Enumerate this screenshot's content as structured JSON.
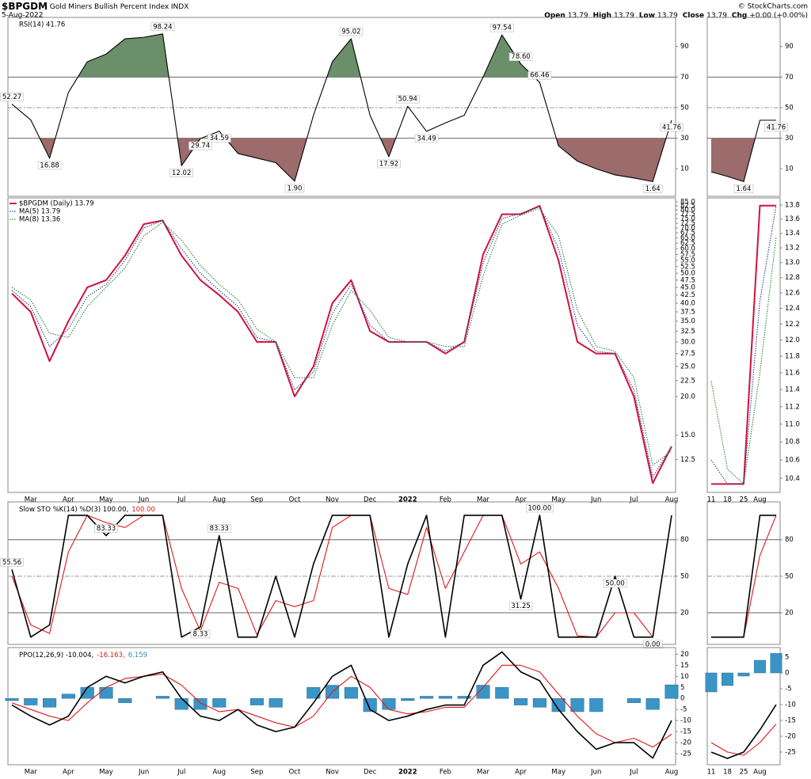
{
  "chart_data": {
    "type": "stock",
    "symbol": "$BPGDM",
    "name": "Gold Miners Bullish Percent Index",
    "exchange": "INDX",
    "date": "5-Aug-2022",
    "credit": "© StockCharts.com",
    "quote": [
      {
        "label": "Open",
        "value": "13.79"
      },
      {
        "label": "High",
        "value": "13.79"
      },
      {
        "label": "Low",
        "value": "13.79"
      },
      {
        "label": "Close",
        "value": "13.79"
      },
      {
        "label": "Chg",
        "value": "+0.00 (+0.00%)"
      }
    ],
    "categories": [
      null,
      "Mar",
      null,
      "Apr",
      null,
      "May",
      null,
      "Jun",
      null,
      "Jul",
      null,
      "Aug",
      null,
      "Sep",
      null,
      "Oct",
      null,
      "Nov",
      null,
      "Dec",
      null,
      "2022",
      null,
      "Feb",
      null,
      "Mar",
      null,
      "Apr",
      null,
      "May",
      null,
      "Jun",
      null,
      "Jul",
      null,
      "Aug"
    ],
    "panels": [
      {
        "title": "RSI(14) 41.76",
        "ylim": [
          -8,
          109
        ],
        "yticks": [
          10,
          30,
          50,
          70,
          90
        ],
        "levels": [
          {
            "value": 30
          },
          {
            "value": 50,
            "dash": true
          },
          {
            "value": 70
          }
        ],
        "fill_below": "#9c6b6b",
        "fill_above": "#6a8f6a",
        "series": [
          {
            "color": "#000000",
            "values": [
              52.27,
              42,
              16.88,
              60,
              80,
              85,
              95,
              96,
              98.24,
              12.02,
              29.74,
              34.59,
              20,
              17,
              14,
              1.9,
              45,
              80,
              95.02,
              45,
              17.92,
              50.94,
              34.49,
              40,
              45,
              70,
              97.54,
              78.6,
              66.46,
              25,
              15,
              10,
              6,
              4,
              1.64,
              41.76
            ],
            "value_labels": [
              "52.27",
              null,
              "16.88",
              null,
              null,
              null,
              null,
              null,
              "98.24",
              "12.02",
              "29.74",
              "34.59",
              null,
              null,
              null,
              "1.90",
              null,
              null,
              "95.02",
              null,
              "17.92",
              "50.94",
              "34.49",
              null,
              null,
              null,
              "97.54",
              "78.60",
              "66.46",
              null,
              null,
              null,
              null,
              null,
              "1.64",
              "41.76"
            ]
          }
        ]
      },
      {
        "log_scale": true,
        "legend": true,
        "xlabels": true,
        "ylim": [
          9.8,
          87.5
        ],
        "yticks": [
          {
            "value": 85,
            "label": "85.0"
          },
          82.5,
          {
            "value": 80,
            "label": "80.0"
          },
          77.5,
          {
            "value": 75,
            "label": "75.0"
          },
          72.5,
          {
            "value": 70,
            "label": "70.0"
          },
          67.5,
          {
            "value": 65,
            "label": "65.0"
          },
          62.5,
          {
            "value": 60,
            "label": "60.0"
          },
          57.5,
          {
            "value": 55,
            "label": "55.0"
          },
          52.5,
          {
            "value": 50,
            "label": "50.0"
          },
          47.5,
          {
            "value": 45,
            "label": "45.0"
          },
          42.5,
          {
            "value": 40,
            "label": "40.0"
          },
          37.5,
          {
            "value": 35,
            "label": "35.0"
          },
          32.5,
          {
            "value": 30,
            "label": "30.0"
          },
          27.5,
          {
            "value": 25,
            "label": "25.0"
          },
          22.5,
          {
            "value": 20,
            "label": "20.0"
          },
          {
            "value": 15,
            "label": "15.0"
          },
          12.5
        ],
        "series": [
          {
            "name": "$BPGDM (Daily) 13.79",
            "color": "#d3103c",
            "width": 2,
            "values": [
              43,
              37.5,
              26,
              35,
              45,
              47.5,
              57,
              72,
              74,
              57,
              47.5,
              42.5,
              37.5,
              30,
              30,
              20,
              25,
              40,
              47.5,
              32.5,
              30,
              30,
              30,
              27.5,
              30,
              57.5,
              77.5,
              77.5,
              82.5,
              55,
              30,
              27.5,
              27.5,
              20,
              10.5,
              13.79
            ]
          },
          {
            "name": "MA(5) 13.79",
            "color": "#2b3fa8",
            "dash": true,
            "values": [
              44,
              39,
              29,
              33,
              42,
              46,
              55,
              70,
              74,
              60,
              50,
              44,
              39,
              31,
              30,
              21,
              24,
              37,
              46,
              34,
              30,
              30,
              30,
              28,
              30,
              54,
              75,
              78,
              82,
              60,
              34,
              28,
              27.5,
              21,
              11,
              13.79
            ]
          },
          {
            "name": "MA(8) 13.36",
            "color": "#2a8a2a",
            "dash": true,
            "values": [
              45,
              41,
              32,
              31,
              39,
              45,
              52,
              66,
              73,
              64,
              53,
              46,
              41,
              33,
              30,
              23,
              23,
              34,
              44,
              38,
              31,
              30,
              30,
              29,
              29,
              49,
              72,
              77,
              81,
              66,
              38,
              29,
              28,
              23,
              12,
              13.36
            ]
          }
        ]
      },
      {
        "title_parts": [
          {
            "text": "Slow STO %K(14) %D(3) 100.00,",
            "color": "#000000"
          },
          {
            "text": "100.00",
            "color": "#e01818"
          }
        ],
        "ylim": [
          -6,
          111
        ],
        "yticks": [
          20,
          50,
          80
        ],
        "levels": [
          {
            "value": 20
          },
          {
            "value": 50,
            "dash": true
          },
          {
            "value": 80
          }
        ],
        "series": [
          {
            "color": "#e01818",
            "values": [
              50,
              10,
              3,
              70,
              100,
              94,
              90,
              100,
              100,
              40,
              5,
              45,
              40,
              2,
              30,
              25,
              30,
              90,
              100,
              100,
              40,
              35,
              90,
              40,
              70,
              100,
              100,
              60,
              70,
              40,
              1,
              0,
              20,
              20,
              0,
              100
            ]
          },
          {
            "color": "#000000",
            "width": 1.6,
            "values": [
              55.56,
              0,
              10,
              100,
              100,
              83.33,
              100,
              100,
              100,
              0,
              8.33,
              83.33,
              0,
              0,
              50,
              0,
              60,
              100,
              100,
              100,
              0,
              60,
              100,
              0,
              100,
              100,
              100,
              31.25,
              100,
              0,
              0,
              0,
              50,
              0,
              0,
              100
            ],
            "value_labels": [
              "55.56",
              null,
              null,
              null,
              null,
              "83.33",
              null,
              null,
              null,
              null,
              "8.33",
              "83.33",
              null,
              null,
              null,
              null,
              null,
              null,
              null,
              null,
              null,
              null,
              null,
              null,
              null,
              null,
              null,
              "31.25",
              "100.00",
              null,
              null,
              null,
              "50.00",
              null,
              "0.00",
              null
            ]
          }
        ]
      },
      {
        "title_parts": [
          {
            "text": "PPO(12,26,9) -10.004,",
            "color": "#000000"
          },
          {
            "text": "-16.163,",
            "color": "#e01818"
          },
          {
            "text": "6.159",
            "color": "#2f8fc0"
          }
        ],
        "xlabels": true,
        "ylim": [
          -30,
          23
        ],
        "yticks": [
          20,
          15,
          10,
          5,
          0,
          -5,
          -10,
          -15,
          -20,
          -25
        ],
        "series": [
          {
            "style": "bar",
            "color": "#3a94c6",
            "values": [
              -1,
              -3,
              -4,
              2,
              5,
              5,
              -2,
              0,
              1,
              -5,
              -5,
              -4,
              0,
              -3,
              -4,
              0,
              5,
              6,
              5,
              -6,
              -5,
              -1,
              1,
              1,
              1,
              6,
              5,
              -3,
              -4,
              -6,
              -6,
              -6,
              0,
              -2,
              -5,
              6.159
            ]
          },
          {
            "color": "#e01818",
            "values": [
              -2,
              -5,
              -8,
              -10,
              -2,
              5,
              9,
              10,
              11,
              6,
              -2,
              -6,
              -5,
              -8,
              -11,
              -13,
              -8,
              3,
              10,
              5,
              -5,
              -7,
              -6,
              -4,
              -4,
              5,
              15,
              15,
              12,
              2,
              -8,
              -16,
              -20,
              -18,
              -22,
              -16.163
            ]
          },
          {
            "color": "#000000",
            "width": 1.6,
            "values": [
              -3,
              -8,
              -12,
              -8,
              5,
              10,
              7,
              10,
              12,
              0,
              -8,
              -10,
              -5,
              -12,
              -15,
              -13,
              -2,
              10,
              15,
              -5,
              -10,
              -8,
              -5,
              -3,
              -3,
              15,
              21,
              12,
              8,
              -5,
              -15,
              -23,
              -20,
              -20,
              -27,
              -10.004
            ]
          }
        ]
      }
    ],
    "zoom": {
      "categories": [
        "11",
        "18",
        "25",
        "Aug",
        null
      ],
      "panels": [
        {
          "ylim": [
            -8,
            109
          ],
          "yticks": [
            10,
            30,
            50,
            70,
            90
          ],
          "levels": [
            {
              "value": 30
            },
            {
              "value": 50,
              "dash": true
            },
            {
              "value": 70
            }
          ],
          "fill_below": "#9c6b6b",
          "fill_above": "#6a8f6a",
          "series": [
            {
              "color": "#000000",
              "values": [
                8,
                5,
                1.64,
                41.76,
                41.76
              ],
              "value_labels": [
                null,
                null,
                "1.64",
                null,
                "41.76"
              ]
            }
          ]
        },
        {
          "log_scale": true,
          "xlabels": true,
          "ylim": [
            10.25,
            13.9
          ],
          "yticks": [
            10.4,
            10.6,
            10.8,
            {
              "value": 11,
              "label": "11.0"
            },
            11.2,
            11.4,
            11.6,
            11.8,
            {
              "value": 12,
              "label": "12.0"
            },
            12.2,
            12.4,
            12.6,
            12.8,
            {
              "value": 13,
              "label": "13.0"
            },
            13.2,
            13.4,
            13.6,
            13.8
          ],
          "series": [
            {
              "color": "#d3103c",
              "width": 2,
              "values": [
                10.34,
                10.34,
                10.34,
                13.79,
                13.79
              ]
            },
            {
              "color": "#2b3fa8",
              "dash": true,
              "values": [
                10.6,
                10.34,
                10.34,
                12.5,
                13.79
              ]
            },
            {
              "color": "#2a8a2a",
              "dash": true,
              "values": [
                11.5,
                10.5,
                10.34,
                11.6,
                13.36
              ]
            }
          ]
        },
        {
          "ylim": [
            -6,
            111
          ],
          "yticks": [
            20,
            50,
            80
          ],
          "levels": [
            {
              "value": 20
            },
            {
              "value": 50,
              "dash": true
            },
            {
              "value": 80
            }
          ],
          "series": [
            {
              "color": "#e01818",
              "values": [
                0,
                0,
                0,
                67,
                100
              ]
            },
            {
              "color": "#000000",
              "width": 1.6,
              "values": [
                0,
                0,
                0,
                100,
                100
              ]
            }
          ]
        },
        {
          "xlabels": true,
          "ylim": [
            -29,
            8
          ],
          "yticks": [
            5,
            0,
            -5,
            -10,
            -15,
            -20,
            -25
          ],
          "series": [
            {
              "style": "bar",
              "color": "#3a94c6",
              "values": [
                -6,
                -4,
                -1,
                4,
                6.159
              ]
            },
            {
              "color": "#e01818",
              "values": [
                -22,
                -25,
                -26,
                -22,
                -16.163
              ]
            },
            {
              "color": "#000000",
              "width": 1.6,
              "values": [
                -25,
                -27,
                -25,
                -18,
                -10.004
              ]
            }
          ]
        }
      ]
    }
  }
}
